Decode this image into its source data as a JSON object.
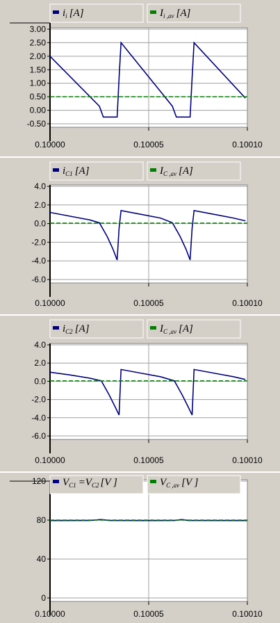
{
  "chart_data": [
    {
      "type": "line",
      "legend": [
        {
          "label": "i",
          "sub": "i",
          "unit": "[A]",
          "color": "#000080"
        },
        {
          "label": "I",
          "sub": "i ,av",
          "unit": "[A]",
          "color": "#008000"
        }
      ],
      "yticks": [
        "3.00",
        "2.50",
        "2.00",
        "1.50",
        "1.00",
        "0.50",
        "0.00",
        "-0.50"
      ],
      "ylim": [
        -0.5,
        3.0
      ],
      "xticks": [
        "0.10000",
        "0.10005",
        "0.10010"
      ],
      "xlim": [
        0.1,
        0.1001
      ],
      "series": [
        {
          "color": "#000080",
          "x": [
            0.1,
            0.100025,
            0.100027,
            0.100034,
            0.100035,
            0.100036,
            0.100062,
            0.100064,
            0.100071,
            0.100072,
            0.100073,
            0.100099
          ],
          "y": [
            2.0,
            0.15,
            -0.25,
            -0.25,
            1.2,
            2.5,
            0.15,
            -0.25,
            -0.25,
            1.2,
            2.5,
            0.45
          ]
        },
        {
          "color": "#008000",
          "dashed": true,
          "x": [
            0.1,
            0.1001
          ],
          "y": [
            0.5,
            0.5
          ]
        }
      ]
    },
    {
      "type": "line",
      "legend": [
        {
          "label": "i",
          "sub": "C1",
          "unit": "[A]",
          "color": "#000080"
        },
        {
          "label": "I",
          "sub": "C ,av",
          "unit": "[A]",
          "color": "#008000"
        }
      ],
      "yticks": [
        "4.0",
        "2.0",
        "0.0",
        "-2.0",
        "-4.0",
        "-6.0"
      ],
      "ylim": [
        -6.0,
        4.0
      ],
      "xticks": [
        "0.10000",
        "0.10005",
        "0.10010"
      ],
      "xlim": [
        0.1,
        0.1001
      ],
      "series": [
        {
          "color": "#000080",
          "x": [
            0.1,
            0.10001,
            0.10002,
            0.100025,
            0.100029,
            0.100032,
            0.100034,
            0.100035,
            0.100036,
            0.100046,
            0.100056,
            0.100062,
            0.100066,
            0.100069,
            0.100071,
            0.100072,
            0.100073,
            0.100083,
            0.100093,
            0.100099
          ],
          "y": [
            1.2,
            0.8,
            0.4,
            0.1,
            -1.4,
            -2.8,
            -3.9,
            -0.5,
            1.4,
            1.0,
            0.6,
            0.1,
            -1.4,
            -2.8,
            -3.9,
            -0.5,
            1.4,
            1.0,
            0.6,
            0.3
          ]
        },
        {
          "color": "#008000",
          "dashed": true,
          "x": [
            0.1,
            0.1001
          ],
          "y": [
            0.05,
            0.05
          ]
        }
      ]
    },
    {
      "type": "line",
      "legend": [
        {
          "label": "i",
          "sub": "C2",
          "unit": "[A]",
          "color": "#000080"
        },
        {
          "label": "I",
          "sub": "C ,av",
          "unit": "[A]",
          "color": "#008000"
        }
      ],
      "yticks": [
        "4.0",
        "2.0",
        "0.0",
        "-2.0",
        "-4.0",
        "-6.0"
      ],
      "ylim": [
        -6.0,
        4.0
      ],
      "xticks": [
        "0.10000",
        "0.10005",
        "0.10010"
      ],
      "xlim": [
        0.1,
        0.1001
      ],
      "series": [
        {
          "color": "#000080",
          "x": [
            0.1,
            0.10001,
            0.10002,
            0.100026,
            0.10003,
            0.100033,
            0.100035,
            0.100036,
            0.100046,
            0.100056,
            0.100063,
            0.100067,
            0.10007,
            0.100072,
            0.100073,
            0.100083,
            0.100093,
            0.100099
          ],
          "y": [
            1.0,
            0.7,
            0.35,
            0.05,
            -1.5,
            -2.8,
            -3.7,
            1.3,
            0.9,
            0.5,
            0.05,
            -1.5,
            -2.8,
            -3.7,
            1.3,
            0.9,
            0.5,
            0.2
          ]
        },
        {
          "color": "#008000",
          "dashed": true,
          "x": [
            0.1,
            0.1001
          ],
          "y": [
            0.05,
            0.05
          ]
        }
      ]
    },
    {
      "type": "line",
      "legend": [
        {
          "label": "V",
          "sub": "C1",
          "unit": "=V",
          "sub2": "C2",
          "unit2": "[V ]",
          "color": "#000080"
        },
        {
          "label": "V",
          "sub": "C ,av",
          "unit": "[V ]",
          "color": "#008000"
        }
      ],
      "yticks": [
        "120",
        "80",
        "40",
        "0"
      ],
      "ylim": [
        -5,
        125
      ],
      "xticks": [
        "0.10000",
        "0.10005",
        "0.10010"
      ],
      "xlim": [
        0.1,
        0.1001
      ],
      "series": [
        {
          "color": "#000080",
          "x": [
            0.1,
            0.10002,
            0.100026,
            0.10003,
            0.10005,
            0.100063,
            0.100067,
            0.10007,
            0.1001
          ],
          "y": [
            79.5,
            79.6,
            80.6,
            79.6,
            79.5,
            79.6,
            80.6,
            79.6,
            79.5
          ]
        },
        {
          "color": "#008000",
          "dashed": true,
          "x": [
            0.1,
            0.1001
          ],
          "y": [
            80,
            80
          ]
        }
      ]
    }
  ]
}
